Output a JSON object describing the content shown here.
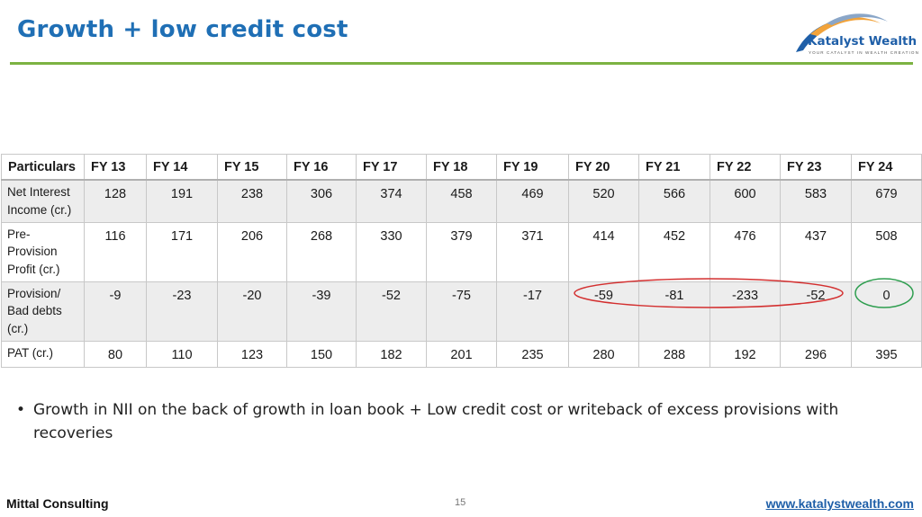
{
  "slide": {
    "title": "Growth + low credit cost",
    "page_number": "15"
  },
  "logo": {
    "name": "Katalyst Wealth",
    "tagline": "YOUR CATALYST IN WEALTH CREATION"
  },
  "table": {
    "headers": [
      "Particulars",
      "FY 13",
      "FY 14",
      "FY 15",
      "FY 16",
      "FY 17",
      "FY 18",
      "FY 19",
      "FY 20",
      "FY 21",
      "FY 22",
      "FY 23",
      "FY 24"
    ],
    "rows": [
      {
        "label": "Net Interest Income (cr.)",
        "values": [
          "128",
          "191",
          "238",
          "306",
          "374",
          "458",
          "469",
          "520",
          "566",
          "600",
          "583",
          "679"
        ]
      },
      {
        "label": "Pre-Provision Profit (cr.)",
        "values": [
          "116",
          "171",
          "206",
          "268",
          "330",
          "379",
          "371",
          "414",
          "452",
          "476",
          "437",
          "508"
        ]
      },
      {
        "label": "Provision/ Bad debts (cr.)",
        "values": [
          "-9",
          "-23",
          "-20",
          "-39",
          "-52",
          "-75",
          "-17",
          "-59",
          "-81",
          "-233",
          "-52",
          "0"
        ]
      },
      {
        "label": "PAT (cr.)",
        "values": [
          "80",
          "110",
          "123",
          "150",
          "182",
          "201",
          "235",
          "280",
          "288",
          "192",
          "296",
          "395"
        ]
      }
    ]
  },
  "annotations": {
    "red_color": "#d32f2f",
    "green_color": "#2e9e4f"
  },
  "bullets": [
    "Growth in NII on the back of growth in loan book + Low credit cost or writeback of excess provisions with recoveries"
  ],
  "footer": {
    "left": "Mittal Consulting",
    "right": "www.katalystwealth.com"
  },
  "colors": {
    "title": "#1f6fb5",
    "rule": "#7cb342",
    "link": "#1f5fa8"
  }
}
